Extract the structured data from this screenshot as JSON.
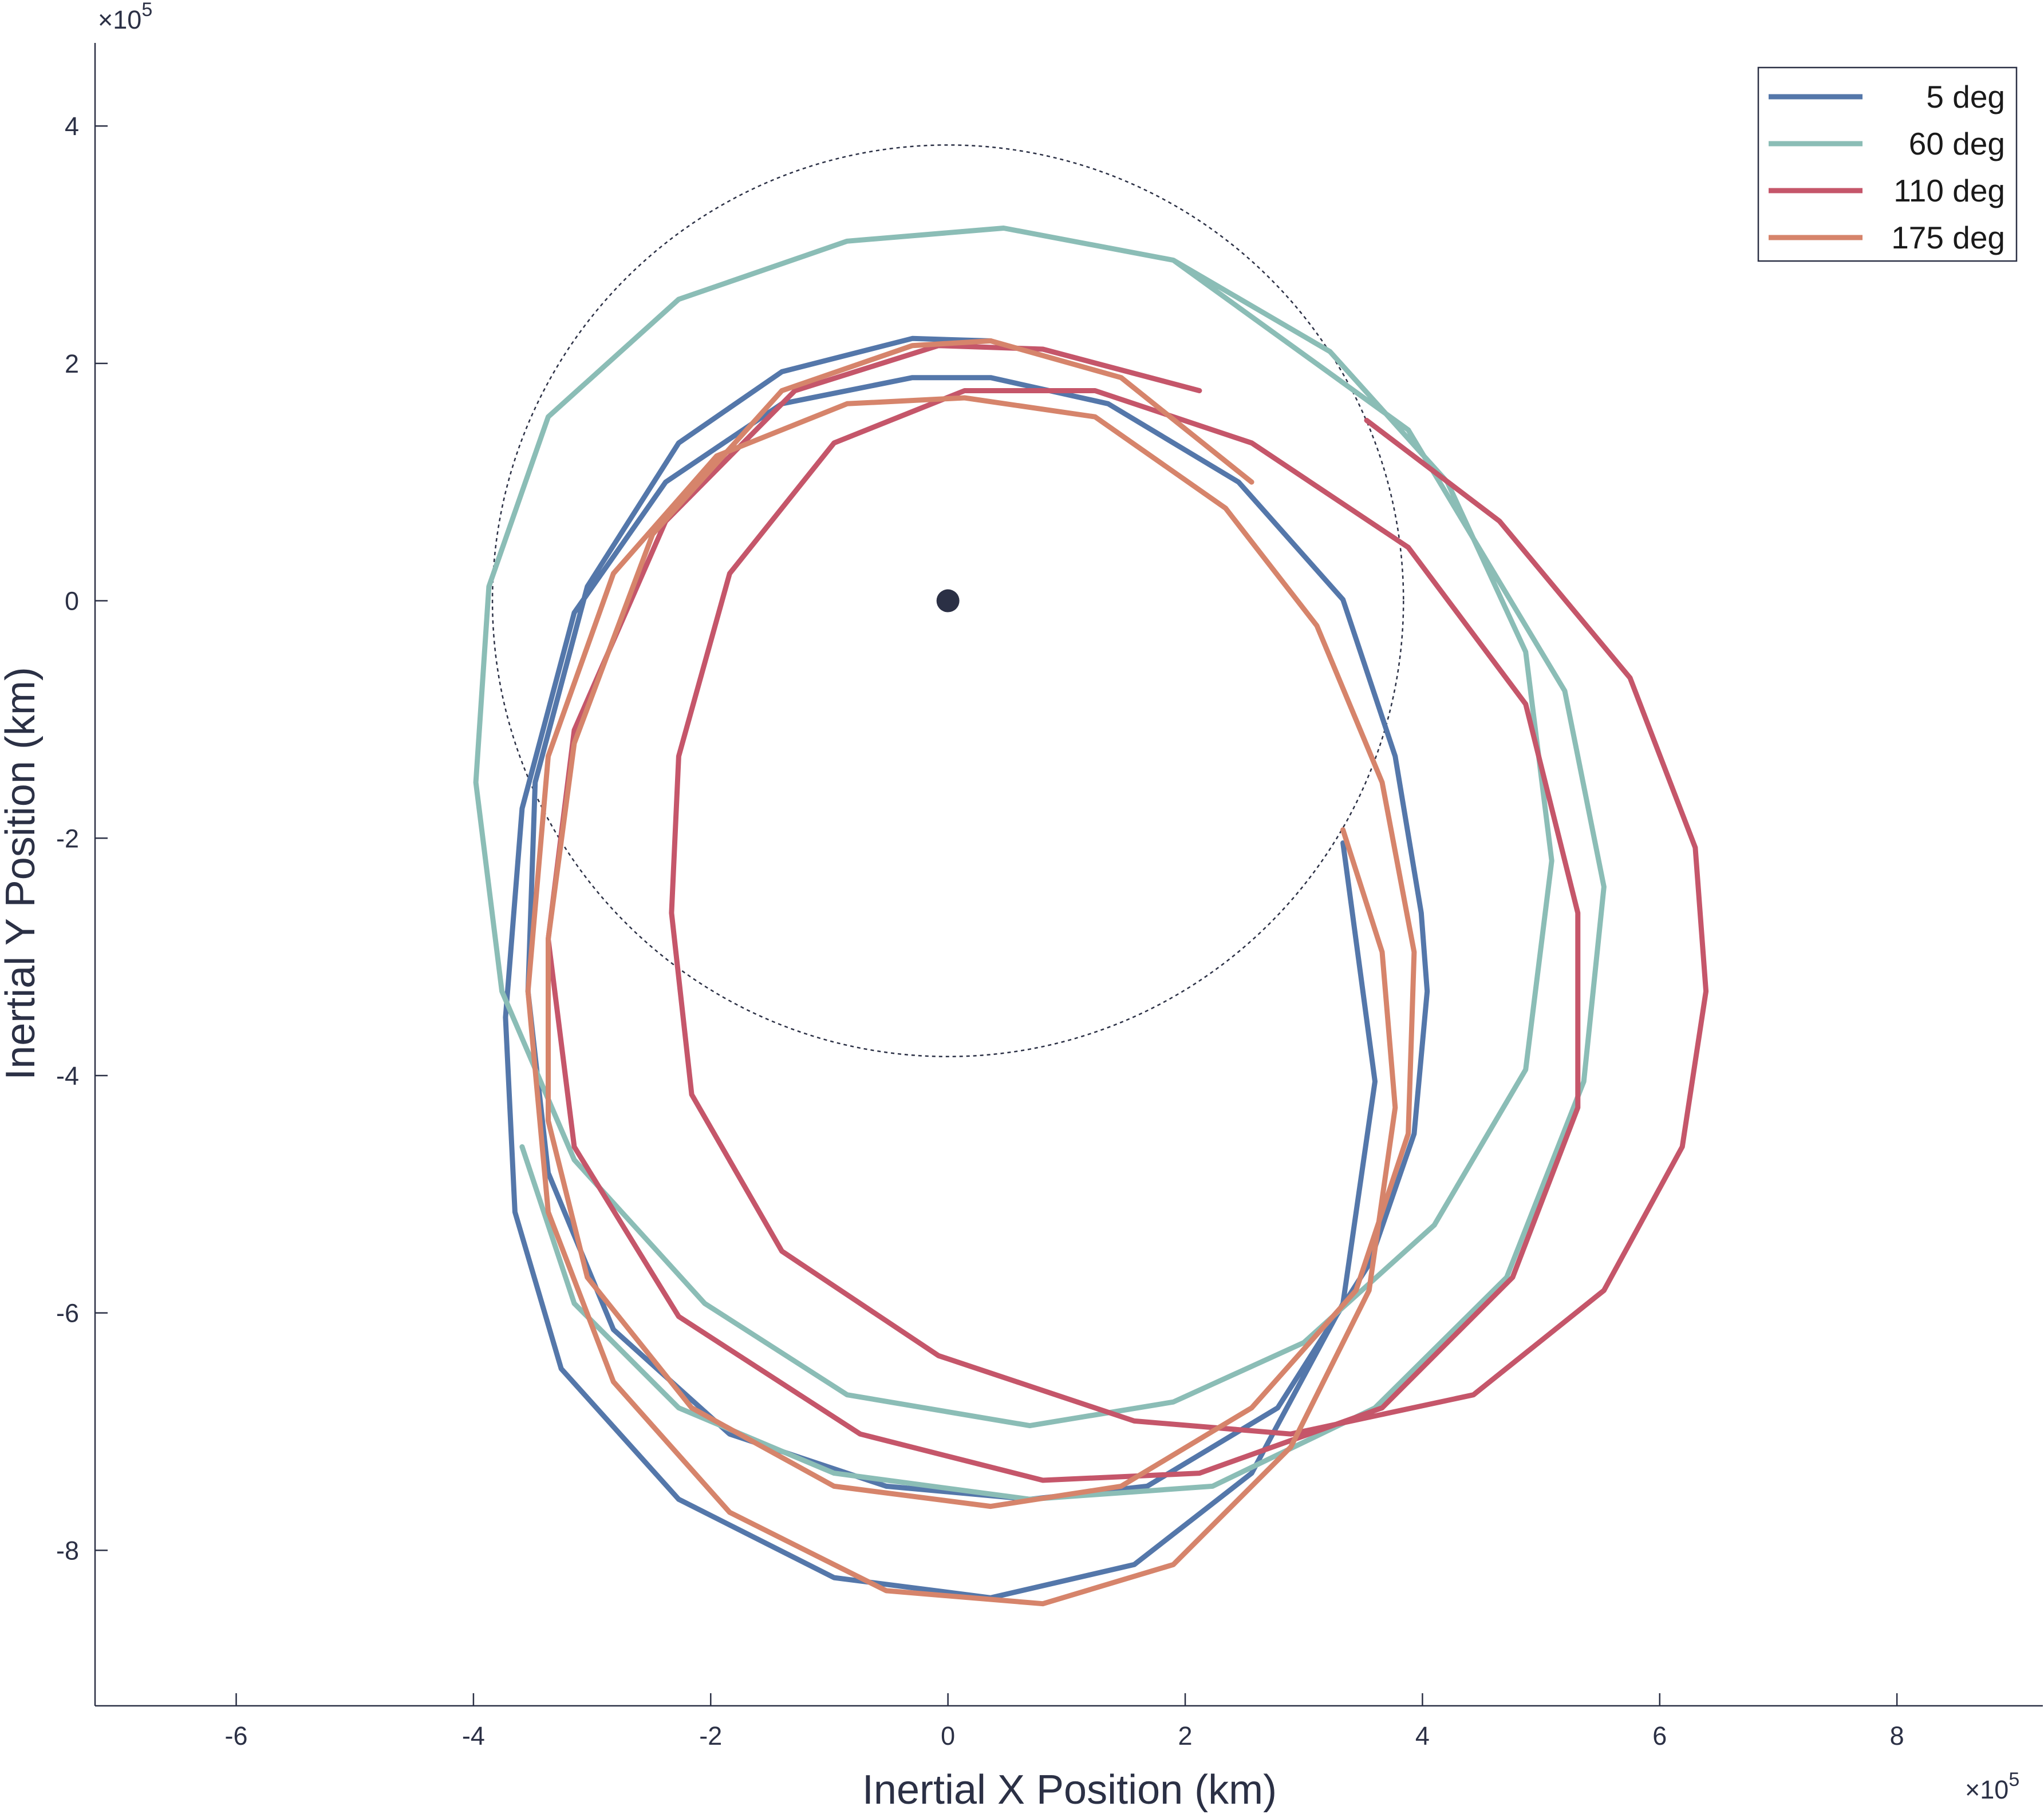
{
  "chart_data": {
    "type": "line",
    "xlabel": "Inertial X Position (km)",
    "ylabel": "Inertial Y Position (km)",
    "x_multiplier": "×10",
    "x_exponent": "5",
    "y_multiplier": "×10",
    "y_exponent": "5",
    "xlim": [
      -7.19,
      9.23
    ],
    "ylim": [
      -9.31,
      4.7
    ],
    "xticks": [
      -6,
      -4,
      -2,
      0,
      2,
      4,
      6,
      8
    ],
    "yticks": [
      -8,
      -6,
      -4,
      -2,
      0,
      2,
      4
    ],
    "legend": "top-right",
    "reference_circle": {
      "x": 0,
      "y": 0,
      "radius": 3.84,
      "color": "#2b3045"
    },
    "center_marker": {
      "x": 0,
      "y": 0,
      "color": "#2b3045"
    },
    "series": [
      {
        "name": "5 deg",
        "color": "#5477aa",
        "x": [
          3.33,
          3.6,
          3.33,
          2.56,
          1.57,
          0.36,
          -0.96,
          -2.27,
          -3.26,
          -3.65,
          -3.73,
          -3.59,
          -3.15,
          -2.38,
          -1.4,
          -0.3,
          0.36,
          1.35,
          2.45,
          3.33,
          3.77,
          3.99,
          4.04,
          3.93,
          3.55,
          2.78,
          1.68,
          0.69,
          -0.52,
          -1.84,
          -2.82,
          -3.37,
          -3.54,
          -3.48,
          -3.04,
          -2.27,
          -1.4,
          -0.3,
          0.36
        ],
        "y": [
          -2.04,
          -4.05,
          -5.92,
          -7.35,
          -8.12,
          -8.4,
          -8.23,
          -7.57,
          -6.47,
          -5.15,
          -3.51,
          -1.75,
          -0.1,
          1.0,
          1.66,
          1.88,
          1.88,
          1.66,
          1.0,
          0.01,
          -1.31,
          -2.63,
          -3.29,
          -4.49,
          -5.59,
          -6.8,
          -7.46,
          -7.57,
          -7.46,
          -7.02,
          -6.14,
          -4.82,
          -3.29,
          -1.53,
          0.12,
          1.33,
          1.93,
          2.21,
          2.19
        ]
      },
      {
        "name": "60 deg",
        "color": "#8bbdb6",
        "x": [
          0.47,
          -0.85,
          -2.27,
          -3.37,
          -3.87,
          -3.98,
          -3.76,
          -3.15,
          -2.05,
          -0.85,
          0.69,
          1.9,
          3.0,
          4.1,
          4.87,
          5.09,
          4.87,
          4.21,
          3.22,
          1.9,
          0.47,
          1.9,
          3.88,
          5.2,
          5.53,
          5.36,
          4.71,
          3.6,
          2.23,
          0.69,
          -0.96,
          -2.27,
          -3.15,
          -3.59
        ],
        "y": [
          3.14,
          3.03,
          2.54,
          1.55,
          0.12,
          -1.53,
          -3.29,
          -4.71,
          -5.92,
          -6.69,
          -6.95,
          -6.75,
          -6.25,
          -5.26,
          -3.95,
          -2.19,
          -0.43,
          1.0,
          2.1,
          2.87,
          3.14,
          2.87,
          1.44,
          -0.76,
          -2.41,
          -4.05,
          -5.7,
          -6.8,
          -7.46,
          -7.57,
          -7.35,
          -6.8,
          -5.92,
          -4.6
        ]
      },
      {
        "name": "110 deg",
        "color": "#c5566a",
        "x": [
          3.53,
          4.65,
          5.75,
          6.3,
          6.39,
          6.19,
          5.53,
          4.43,
          2.89,
          1.57,
          -0.08,
          -1.4,
          -2.16,
          -2.33,
          -2.27,
          -1.84,
          -0.96,
          0.14,
          1.24,
          2.56,
          3.88,
          4.87,
          5.31,
          5.31,
          4.76,
          3.66,
          2.12,
          0.8,
          -0.74,
          -2.27,
          -3.15,
          -3.37,
          -3.15,
          -2.38,
          -1.29,
          -0.08,
          0.8,
          2.12
        ],
        "y": [
          1.52,
          0.67,
          -0.65,
          -2.08,
          -3.29,
          -4.6,
          -5.81,
          -6.69,
          -7.02,
          -6.91,
          -6.36,
          -5.48,
          -4.16,
          -2.63,
          -1.31,
          0.23,
          1.33,
          1.77,
          1.77,
          1.33,
          0.45,
          -0.87,
          -2.63,
          -4.27,
          -5.7,
          -6.8,
          -7.35,
          -7.41,
          -7.02,
          -6.03,
          -4.6,
          -2.85,
          -1.09,
          0.67,
          1.77,
          2.15,
          2.12,
          1.77
        ]
      },
      {
        "name": "175 deg",
        "color": "#d6846b",
        "x": [
          3.33,
          3.66,
          3.77,
          3.55,
          2.89,
          1.9,
          0.8,
          -0.52,
          -1.84,
          -2.82,
          -3.37,
          -3.54,
          -3.37,
          -2.82,
          -1.95,
          -0.85,
          0.14,
          1.24,
          2.34,
          3.11,
          3.66,
          3.93,
          3.88,
          3.44,
          2.56,
          1.46,
          0.36,
          -0.96,
          -2.16,
          -3.04,
          -3.37,
          -3.37,
          -3.15,
          -2.49,
          -1.4,
          -0.3,
          0.36,
          1.46,
          2.56
        ],
        "y": [
          -1.93,
          -2.96,
          -4.27,
          -5.81,
          -7.13,
          -8.12,
          -8.45,
          -8.34,
          -7.68,
          -6.58,
          -5.15,
          -3.29,
          -1.31,
          0.23,
          1.22,
          1.66,
          1.71,
          1.55,
          0.78,
          -0.21,
          -1.53,
          -2.96,
          -4.49,
          -5.81,
          -6.8,
          -7.46,
          -7.63,
          -7.46,
          -6.8,
          -5.7,
          -4.38,
          -2.85,
          -1.2,
          0.56,
          1.77,
          2.15,
          2.19,
          1.88,
          1.0
        ]
      }
    ]
  }
}
